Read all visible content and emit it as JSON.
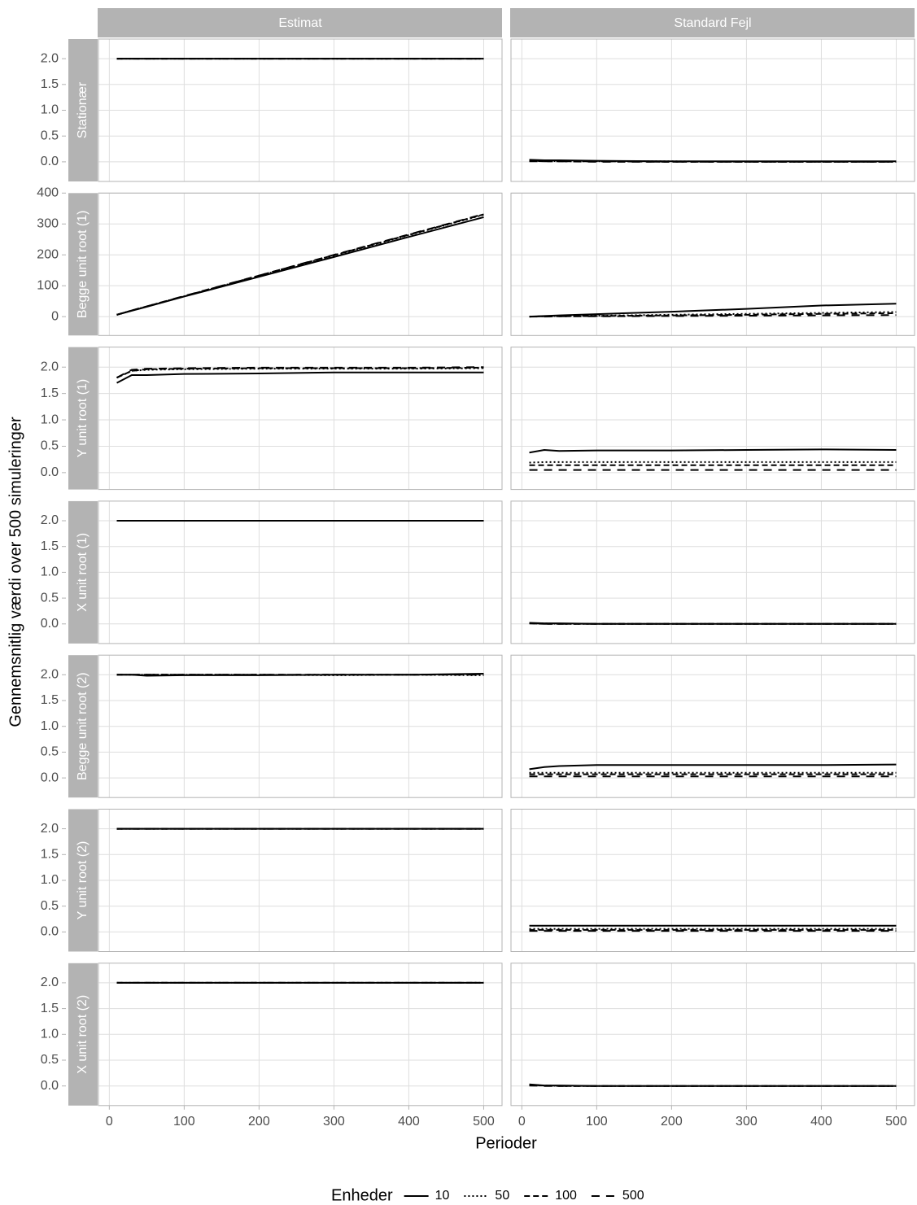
{
  "chart_data": {
    "type": "line",
    "x_label": "Perioder",
    "y_label": "Gennemsnitlig værdi over 500 simuleringer",
    "legend_title": "Enheder",
    "legend_position": "bottom",
    "grid": true,
    "x": [
      10,
      30,
      50,
      100,
      200,
      300,
      400,
      500
    ],
    "xlim": [
      -14.5,
      524.5
    ],
    "xticks": [
      0,
      100,
      200,
      300,
      400,
      500
    ],
    "columns": [
      "Estimat",
      "Standard Fejl"
    ],
    "series": [
      {
        "name": "10",
        "linetype": "solid",
        "color": "#000000"
      },
      {
        "name": "50",
        "linetype": "dotted",
        "color": "#000000"
      },
      {
        "name": "100",
        "linetype": "dashed",
        "color": "#000000"
      },
      {
        "name": "500",
        "linetype": "longdash",
        "color": "#000000"
      }
    ],
    "rows": [
      {
        "label": "Stationær",
        "ylim": [
          -0.38,
          2.38
        ],
        "yticks": [
          {
            "value": 0,
            "label": "0.0"
          },
          0.5,
          {
            "value": 1,
            "label": "1.0"
          },
          1.5,
          {
            "value": 2,
            "label": "2.0"
          }
        ],
        "panels": [
          {
            "values": [
              [
                2,
                2,
                2,
                2,
                2,
                2,
                2,
                2
              ],
              [
                2,
                2,
                2,
                2,
                2,
                2,
                2,
                2
              ],
              [
                2,
                2,
                2,
                2,
                2,
                2,
                2,
                2
              ],
              [
                2,
                2,
                2,
                2,
                2,
                2,
                2,
                2
              ]
            ]
          },
          {
            "values": [
              [
                0.04,
                0.03,
                0.03,
                0.02,
                0.01,
                0.01,
                0.01,
                0.01
              ],
              [
                0.02,
                0.02,
                0.01,
                0.01,
                0.01,
                0,
                0,
                0
              ],
              [
                0.02,
                0.01,
                0.01,
                0.01,
                0,
                0,
                0,
                0
              ],
              [
                0.01,
                0.01,
                0.01,
                0,
                0,
                0,
                0,
                0
              ]
            ]
          }
        ]
      },
      {
        "label": "Begge unit root (1)",
        "ylim": [
          -61,
          400
        ],
        "yticks": [
          0,
          100,
          200,
          300,
          400
        ],
        "panels": [
          {
            "values": [
              [
                6,
                19,
                32,
                65,
                129,
                193,
                258,
                322
              ],
              [
                6,
                20,
                33,
                66,
                132,
                198,
                264,
                330
              ],
              [
                6,
                20,
                33,
                66,
                133,
                199,
                265,
                331
              ],
              [
                6,
                20,
                33,
                67,
                133,
                200,
                266,
                332
              ]
            ]
          },
          {
            "values": [
              [
                0,
                2,
                4,
                8,
                16,
                25,
                36,
                42
              ],
              [
                0,
                1,
                2,
                3,
                6,
                9,
                12,
                15
              ],
              [
                0,
                1,
                1,
                2,
                4,
                6,
                9,
                11
              ],
              [
                0,
                0,
                1,
                1,
                2,
                3,
                4,
                5
              ]
            ]
          }
        ]
      },
      {
        "label": "Y unit root (1)",
        "ylim": [
          -0.32,
          2.38
        ],
        "yticks": [
          {
            "value": 0,
            "label": "0.0"
          },
          0.5,
          {
            "value": 1,
            "label": "1.0"
          },
          1.5,
          {
            "value": 2,
            "label": "2.0"
          }
        ],
        "panels": [
          {
            "values": [
              [
                1.7,
                1.85,
                1.85,
                1.87,
                1.88,
                1.9,
                1.9,
                1.9
              ],
              [
                1.8,
                1.93,
                1.95,
                1.96,
                1.97,
                1.97,
                1.97,
                1.98
              ],
              [
                1.8,
                1.93,
                1.96,
                1.97,
                1.98,
                1.98,
                1.98,
                1.99
              ],
              [
                1.8,
                1.95,
                1.97,
                1.98,
                1.99,
                1.99,
                1.99,
                2
              ]
            ]
          },
          {
            "values": [
              [
                0.38,
                0.43,
                0.41,
                0.42,
                0.42,
                0.43,
                0.44,
                0.43
              ],
              [
                0.19,
                0.2,
                0.2,
                0.2,
                0.2,
                0.2,
                0.2,
                0.2
              ],
              [
                0.14,
                0.14,
                0.14,
                0.14,
                0.14,
                0.14,
                0.14,
                0.14
              ],
              [
                0.05,
                0.05,
                0.05,
                0.05,
                0.05,
                0.05,
                0.05,
                0.05
              ]
            ]
          }
        ]
      },
      {
        "label": "X unit root (1)",
        "ylim": [
          -0.38,
          2.38
        ],
        "yticks": [
          {
            "value": 0,
            "label": "0.0"
          },
          0.5,
          {
            "value": 1,
            "label": "1.0"
          },
          1.5,
          {
            "value": 2,
            "label": "2.0"
          }
        ],
        "panels": [
          {
            "values": [
              [
                2,
                2,
                2,
                2,
                2,
                2,
                2,
                2
              ],
              [
                2,
                2,
                2,
                2,
                2,
                2,
                2,
                2
              ],
              [
                2,
                2,
                2,
                2,
                2,
                2,
                2,
                2
              ],
              [
                2,
                2,
                2,
                2,
                2,
                2,
                2,
                2
              ]
            ]
          },
          {
            "values": [
              [
                0.02,
                0.01,
                0.01,
                0,
                0,
                0,
                0,
                0
              ],
              [
                0.01,
                0.01,
                0,
                0,
                0,
                0,
                0,
                0
              ],
              [
                0.01,
                0,
                0,
                0,
                0,
                0,
                0,
                0
              ],
              [
                0.01,
                0,
                0,
                0,
                0,
                0,
                0,
                0
              ]
            ]
          }
        ]
      },
      {
        "label": "Begge unit root (2)",
        "ylim": [
          -0.38,
          2.38
        ],
        "yticks": [
          {
            "value": 0,
            "label": "0.0"
          },
          0.5,
          {
            "value": 1,
            "label": "1.0"
          },
          1.5,
          {
            "value": 2,
            "label": "2.0"
          }
        ],
        "panels": [
          {
            "values": [
              [
                2,
                2,
                1.98,
                1.99,
                1.99,
                2,
                2,
                2.02
              ],
              [
                2,
                2,
                2,
                2,
                2,
                1.99,
                2,
                1.99
              ],
              [
                2,
                2,
                2,
                2,
                2,
                2,
                2,
                2.01
              ],
              [
                2,
                2,
                2,
                2,
                2,
                2,
                2,
                2
              ]
            ]
          },
          {
            "values": [
              [
                0.17,
                0.21,
                0.23,
                0.25,
                0.25,
                0.25,
                0.25,
                0.26
              ],
              [
                0.1,
                0.1,
                0.1,
                0.1,
                0.1,
                0.1,
                0.1,
                0.1
              ],
              [
                0.07,
                0.07,
                0.07,
                0.07,
                0.07,
                0.07,
                0.07,
                0.07
              ],
              [
                0.03,
                0.03,
                0.03,
                0.03,
                0.03,
                0.03,
                0.03,
                0.03
              ]
            ]
          }
        ]
      },
      {
        "label": "Y unit root (2)",
        "ylim": [
          -0.38,
          2.38
        ],
        "yticks": [
          {
            "value": 0,
            "label": "0.0"
          },
          0.5,
          {
            "value": 1,
            "label": "1.0"
          },
          1.5,
          {
            "value": 2,
            "label": "2.0"
          }
        ],
        "panels": [
          {
            "values": [
              [
                2,
                2,
                2,
                2,
                2,
                2,
                2,
                2
              ],
              [
                2,
                2,
                2,
                2,
                2,
                2,
                2,
                2
              ],
              [
                2,
                2,
                2,
                2,
                2,
                2,
                2,
                2
              ],
              [
                2,
                2,
                2,
                2,
                2,
                2,
                2,
                2
              ]
            ]
          },
          {
            "values": [
              [
                0.12,
                0.12,
                0.12,
                0.12,
                0.12,
                0.12,
                0.12,
                0.12
              ],
              [
                0.06,
                0.06,
                0.06,
                0.06,
                0.06,
                0.06,
                0.06,
                0.06
              ],
              [
                0.04,
                0.04,
                0.04,
                0.04,
                0.04,
                0.04,
                0.04,
                0.04
              ],
              [
                0.02,
                0.02,
                0.02,
                0.02,
                0.02,
                0.02,
                0.02,
                0.02
              ]
            ]
          }
        ]
      },
      {
        "label": "X unit root (2)",
        "ylim": [
          -0.38,
          2.38
        ],
        "yticks": [
          {
            "value": 0,
            "label": "0.0"
          },
          0.5,
          {
            "value": 1,
            "label": "1.0"
          },
          1.5,
          {
            "value": 2,
            "label": "2.0"
          }
        ],
        "panels": [
          {
            "values": [
              [
                2,
                2,
                2,
                2,
                2,
                2,
                2,
                2
              ],
              [
                2,
                2,
                2,
                2,
                2,
                2,
                2,
                2
              ],
              [
                2,
                2,
                2,
                2,
                2,
                2,
                2,
                2
              ],
              [
                2,
                2,
                2,
                2,
                2,
                2,
                2,
                2
              ]
            ]
          },
          {
            "values": [
              [
                0.03,
                0.01,
                0.01,
                0,
                0,
                0,
                0,
                0
              ],
              [
                0.02,
                0.01,
                0,
                0,
                0,
                0,
                0,
                0
              ],
              [
                0.01,
                0.01,
                0,
                0,
                0,
                0,
                0,
                0
              ],
              [
                0.01,
                0,
                0,
                0,
                0,
                0,
                0,
                0
              ]
            ]
          }
        ]
      }
    ]
  }
}
